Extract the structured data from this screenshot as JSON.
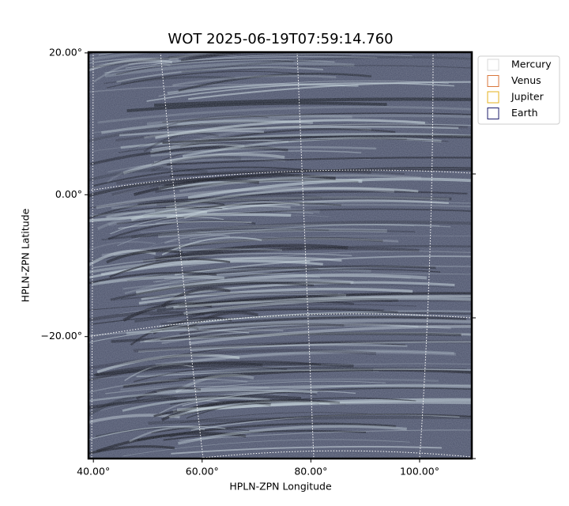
{
  "chart_data": {
    "type": "image",
    "title": "WOT 2025-06-19T07:59:14.760",
    "x_label": "HPLN-ZPN Longitude",
    "y_label": "HPLN-ZPN Latitude",
    "xlim": [
      39.1,
      109.6
    ],
    "ylim": [
      -37.2,
      20.1
    ],
    "xticks": [
      {
        "value": 40,
        "label": "40.00°"
      },
      {
        "value": 60,
        "label": "60.00°"
      },
      {
        "value": 80,
        "label": "80.00°"
      },
      {
        "value": 100,
        "label": "100.00°"
      }
    ],
    "yticks": [
      {
        "value": 20,
        "label": "20.00°"
      },
      {
        "value": 0,
        "label": "0.00°"
      },
      {
        "value": -20,
        "label": "−20.00°"
      }
    ],
    "grid": true,
    "legend": "upper right outside",
    "series": [
      {
        "name": "Mercury",
        "color": "#d9d9d9"
      },
      {
        "name": "Venus",
        "color": "#d9773c"
      },
      {
        "name": "Jupiter",
        "color": "#e6b21c"
      },
      {
        "name": "Earth",
        "color": "#1c1c6b"
      }
    ]
  }
}
